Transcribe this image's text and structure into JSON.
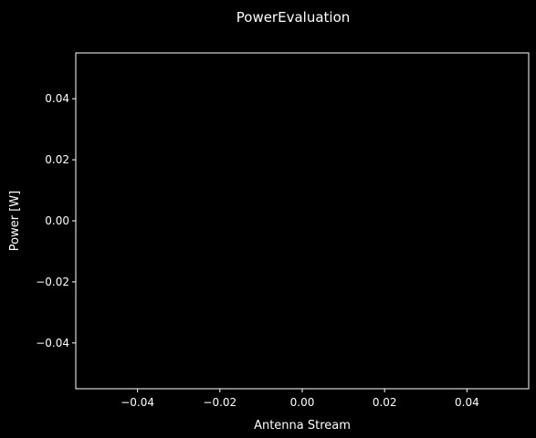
{
  "chart_data": {
    "type": "line",
    "title": "PowerEvaluation",
    "xlabel": "Antenna Stream",
    "ylabel": "Power [W]",
    "xlim": [
      -0.055,
      0.055
    ],
    "ylim": [
      -0.055,
      0.055
    ],
    "x_ticks": [
      -0.04,
      -0.02,
      0.0,
      0.02,
      0.04
    ],
    "y_ticks": [
      -0.04,
      -0.02,
      0.0,
      0.02,
      0.04
    ],
    "x_tick_labels": [
      "−0.04",
      "−0.02",
      "0.00",
      "0.02",
      "0.04"
    ],
    "y_tick_labels": [
      "−0.04",
      "−0.02",
      "0.00",
      "0.02",
      "0.04"
    ],
    "grid": false,
    "series": [],
    "colors": {
      "background": "#000000",
      "axes": "#ffffff",
      "text": "#ffffff"
    }
  }
}
